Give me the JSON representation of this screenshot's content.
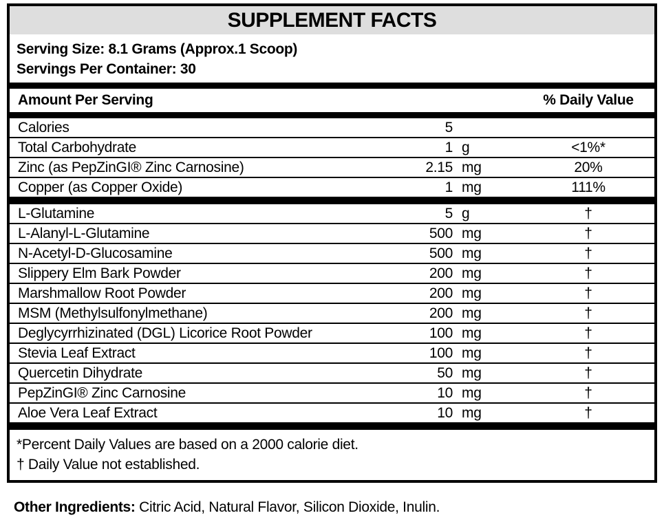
{
  "title": "SUPPLEMENT FACTS",
  "serving": {
    "size": "Serving Size: 8.1 Grams (Approx.1 Scoop)",
    "per_container": "Servings Per Container: 30"
  },
  "table": {
    "header": {
      "amount_col": "Amount Per Serving",
      "dv_col": "% Daily Value"
    },
    "rows": [
      {
        "name": "Calories",
        "amount": "5",
        "unit": "",
        "dv": ""
      },
      {
        "name": "Total Carbohydrate",
        "amount": "1",
        "unit": "g",
        "dv": "<1%*"
      },
      {
        "name": "Zinc (as PepZinGI® Zinc Carnosine)",
        "amount": "2.15",
        "unit": "mg",
        "dv": "20%"
      },
      {
        "name": "Copper (as Copper Oxide)",
        "amount": "1",
        "unit": "mg",
        "dv": "111%"
      },
      {
        "name": "L-Glutamine",
        "amount": "5",
        "unit": "g",
        "dv": "†"
      },
      {
        "name": "L-Alanyl-L-Glutamine",
        "amount": "500",
        "unit": "mg",
        "dv": "†"
      },
      {
        "name": "N-Acetyl-D-Glucosamine",
        "amount": "500",
        "unit": "mg",
        "dv": "†"
      },
      {
        "name": "Slippery Elm Bark Powder",
        "amount": "200",
        "unit": "mg",
        "dv": "†"
      },
      {
        "name": "Marshmallow Root Powder",
        "amount": "200",
        "unit": "mg",
        "dv": "†"
      },
      {
        "name": "MSM (Methylsulfonylmethane)",
        "amount": "200",
        "unit": "mg",
        "dv": "†"
      },
      {
        "name": "Deglycyrrhizinated (DGL) Licorice Root Powder",
        "amount": "100",
        "unit": "mg",
        "dv": "†"
      },
      {
        "name": "Stevia Leaf Extract",
        "amount": "100",
        "unit": "mg",
        "dv": "†"
      },
      {
        "name": "Quercetin Dihydrate",
        "amount": "50",
        "unit": "mg",
        "dv": "†"
      },
      {
        "name": "PepZinGI® Zinc Carnosine",
        "amount": "10",
        "unit": "mg",
        "dv": "†"
      },
      {
        "name": "Aloe Vera Leaf Extract",
        "amount": "10",
        "unit": "mg",
        "dv": "†"
      }
    ]
  },
  "footnotes": {
    "percent_note": "*Percent Daily Values are based on a 2000 calorie diet.",
    "dagger_note": "† Daily Value not established."
  },
  "other_ingredients": {
    "label": "Other Ingredients:",
    "text": " Citric Acid, Natural Flavor, Silicon Dioxide, Inulin."
  },
  "colors": {
    "title_bar_bg": "#dedede",
    "border": "#000000",
    "text": "#000000"
  }
}
